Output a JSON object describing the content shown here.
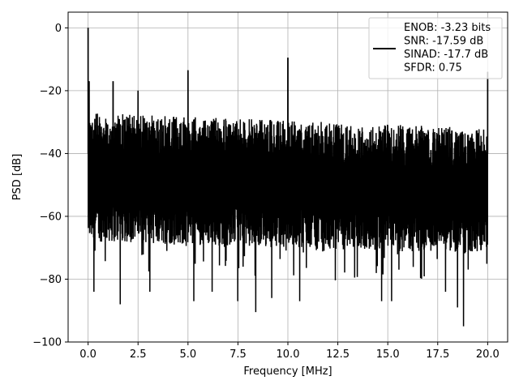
{
  "chart_data": {
    "type": "line",
    "title": "",
    "xlabel": "Frequency [MHz]",
    "ylabel": "PSD [dB]",
    "xlim": [
      -1.0,
      21.0
    ],
    "ylim": [
      -100,
      5
    ],
    "xticks": [
      0.0,
      2.5,
      5.0,
      7.5,
      10.0,
      12.5,
      15.0,
      17.5,
      20.0
    ],
    "xtick_labels": [
      "0.0",
      "2.5",
      "5.0",
      "7.5",
      "10.0",
      "12.5",
      "15.0",
      "17.5",
      "20.0"
    ],
    "yticks": [
      0,
      -20,
      -40,
      -60,
      -80,
      -100
    ],
    "ytick_labels": [
      "0",
      "−20",
      "−40",
      "−60",
      "−80",
      "−100"
    ],
    "grid": true,
    "legend_position": "top-right",
    "legend": {
      "lines": [
        "ENOB: -3.23 bits",
        "SNR: -17.59 dB",
        "SINAD: -17.7 dB",
        "SFDR: 0.75"
      ]
    },
    "series": [
      {
        "color": "#000000",
        "x_range": [
          0,
          20
        ],
        "noise_band": {
          "upper_start": -27,
          "upper_end": -32,
          "dense_low_start": -68,
          "dense_low_end": -72,
          "deep_dip_floor": -95
        },
        "spurs": [
          {
            "x": 0.0,
            "y": 0
          },
          {
            "x": 0.05,
            "y": -17
          },
          {
            "x": 1.25,
            "y": -17
          },
          {
            "x": 2.5,
            "y": -20
          },
          {
            "x": 5.0,
            "y": -13.5
          },
          {
            "x": 10.0,
            "y": -9.5
          },
          {
            "x": 20.0,
            "y": -14
          }
        ],
        "dips": [
          {
            "x": 0.3,
            "y": -84
          },
          {
            "x": 1.6,
            "y": -88
          },
          {
            "x": 3.1,
            "y": -84
          },
          {
            "x": 5.3,
            "y": -87
          },
          {
            "x": 6.2,
            "y": -84
          },
          {
            "x": 7.5,
            "y": -87
          },
          {
            "x": 8.4,
            "y": -90.5
          },
          {
            "x": 9.2,
            "y": -86
          },
          {
            "x": 10.6,
            "y": -87
          },
          {
            "x": 14.7,
            "y": -87
          },
          {
            "x": 15.2,
            "y": -87
          },
          {
            "x": 17.9,
            "y": -84
          },
          {
            "x": 18.5,
            "y": -89
          },
          {
            "x": 18.8,
            "y": -95
          }
        ]
      }
    ]
  }
}
